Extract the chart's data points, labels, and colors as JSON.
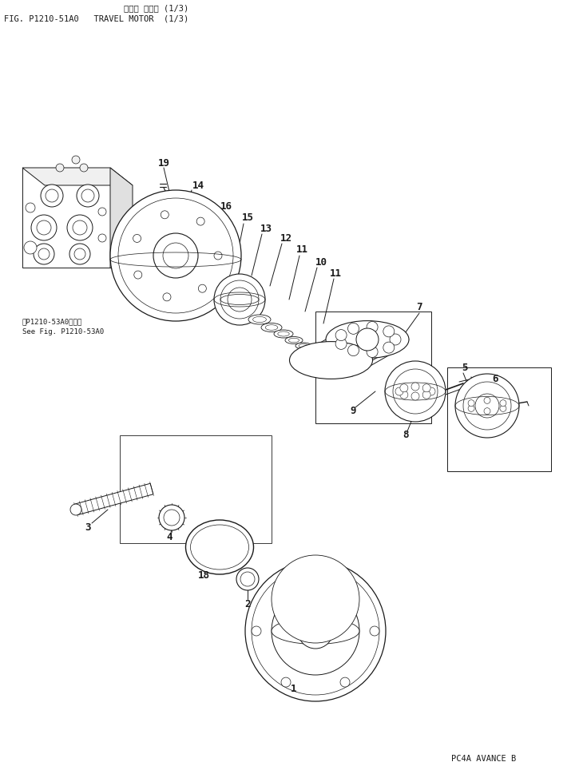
{
  "title_jp": "コココ モータ (1/3)",
  "title_en": "FIG. P1210-51A0   TRAVEL MOTOR  (1/3)",
  "footer": "PC4A AVANCE B",
  "ref_jp": "前P1210-53A0図参照",
  "ref_en": "See Fig. P1210-53A0",
  "bg_color": "#ffffff",
  "line_color": "#1a1a1a"
}
